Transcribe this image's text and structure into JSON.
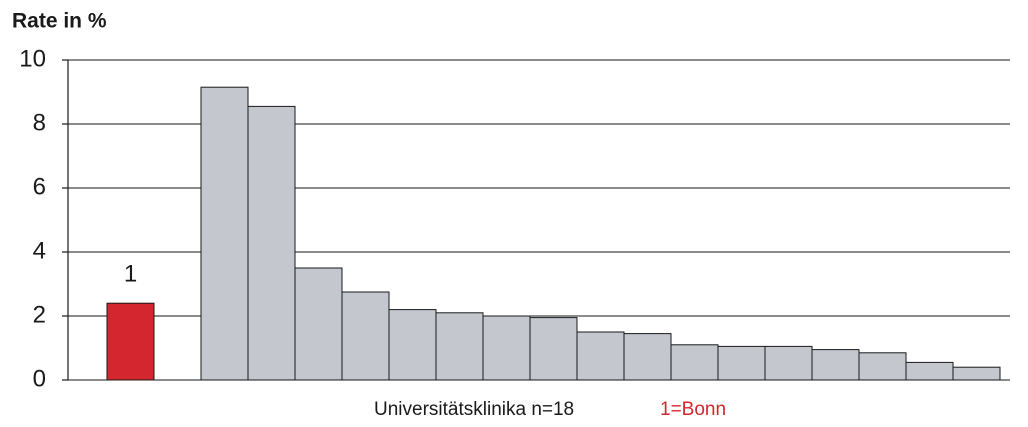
{
  "chart_data": {
    "type": "bar",
    "title": "Rate in %",
    "x_label": "Universitätsklinika n=18",
    "annotation": "1=Bonn",
    "categories": [
      "1",
      null,
      null,
      null,
      null,
      null,
      null,
      null,
      null,
      null,
      null,
      null,
      null,
      null,
      null,
      null,
      null,
      null
    ],
    "values": [
      2.4,
      9.15,
      8.55,
      3.5,
      2.75,
      2.2,
      2.1,
      2.0,
      1.95,
      1.5,
      1.45,
      1.1,
      1.05,
      1.05,
      0.95,
      0.85,
      0.55,
      0.4
    ],
    "colors": [
      "#d4262e",
      "#c4c7cd",
      "#c4c7cd",
      "#c4c7cd",
      "#c4c7cd",
      "#c4c7cd",
      "#c4c7cd",
      "#c4c7cd",
      "#c4c7cd",
      "#c4c7cd",
      "#c4c7cd",
      "#c4c7cd",
      "#c4c7cd",
      "#c4c7cd",
      "#c4c7cd",
      "#c4c7cd",
      "#c4c7cd",
      "#c4c7cd"
    ],
    "annotation_color": "#d4262e",
    "ylim": [
      0,
      10
    ],
    "yticks": [
      0,
      2,
      4,
      6,
      8,
      10
    ],
    "grid": true
  }
}
